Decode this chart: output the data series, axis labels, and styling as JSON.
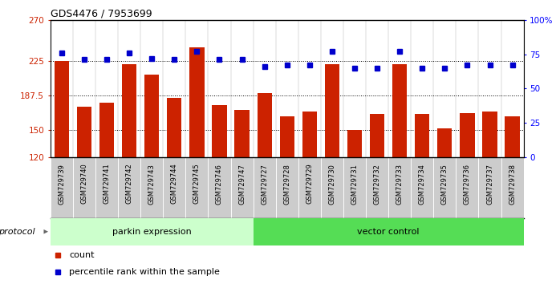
{
  "title": "GDS4476 / 7953699",
  "samples": [
    "GSM729739",
    "GSM729740",
    "GSM729741",
    "GSM729742",
    "GSM729743",
    "GSM729744",
    "GSM729745",
    "GSM729746",
    "GSM729747",
    "GSM729727",
    "GSM729728",
    "GSM729729",
    "GSM729730",
    "GSM729731",
    "GSM729732",
    "GSM729733",
    "GSM729734",
    "GSM729735",
    "GSM729736",
    "GSM729737",
    "GSM729738"
  ],
  "counts": [
    225,
    175,
    180,
    222,
    210,
    185,
    240,
    177,
    172,
    190,
    165,
    170,
    222,
    150,
    167,
    222,
    167,
    152,
    168,
    170,
    165
  ],
  "percentile": [
    76,
    71,
    71,
    76,
    72,
    71,
    77,
    71,
    71,
    66,
    67,
    67,
    77,
    65,
    65,
    77,
    65,
    65,
    67,
    67,
    67
  ],
  "group1_count": 9,
  "group1_label": "parkin expression",
  "group2_label": "vector control",
  "group1_color": "#ccffcc",
  "group2_color": "#55dd55",
  "bar_color": "#cc2200",
  "dot_color": "#0000cc",
  "ylim_left": [
    120,
    270
  ],
  "ylim_right": [
    0,
    100
  ],
  "yticks_left": [
    120,
    150,
    187.5,
    225,
    270
  ],
  "yticks_left_labels": [
    "120",
    "150",
    "187.5",
    "225",
    "270"
  ],
  "yticks_right": [
    0,
    25,
    50,
    75,
    100
  ],
  "yticks_right_labels": [
    "0",
    "25",
    "50",
    "75",
    "100%"
  ],
  "hlines": [
    150,
    187.5,
    225
  ],
  "protocol_label": "protocol",
  "legend_count_label": "count",
  "legend_pct_label": "percentile rank within the sample",
  "bar_width": 0.65,
  "label_box_color": "#cccccc",
  "label_box_border": "#888888"
}
